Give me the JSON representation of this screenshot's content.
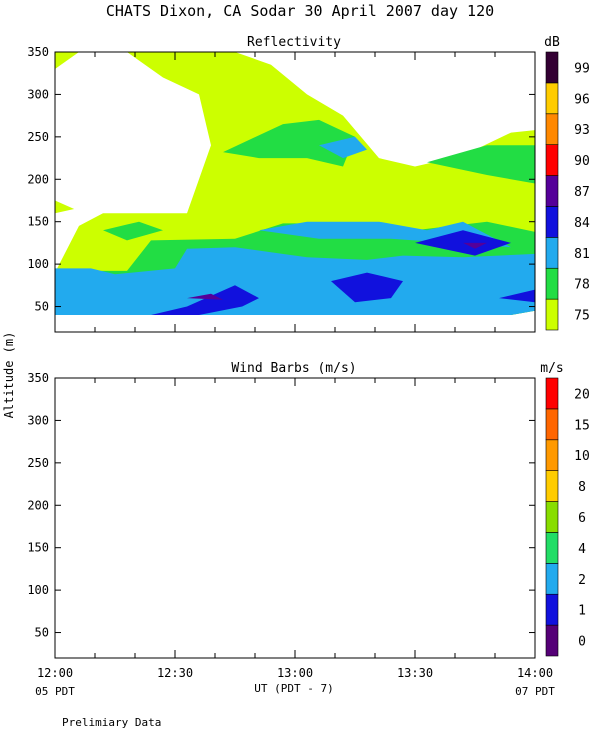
{
  "header": {
    "title": "CHATS Dixon, CA  Sodar  30 April 2007  day 120"
  },
  "footer": {
    "xlabel": "UT  (PDT - 7)",
    "left_tz": "05 PDT",
    "right_tz": "07 PDT",
    "note": "Prelimiary Data"
  },
  "y_label": "Altitude (m)",
  "x_ticks": [
    "12:00",
    "12:30",
    "13:00",
    "13:30",
    "14:00"
  ],
  "y_ticks": [
    "50",
    "100",
    "150",
    "200",
    "250",
    "300",
    "350"
  ],
  "colorbars": {
    "reflectivity": {
      "unit": "dB",
      "labels": [
        "75",
        "78",
        "81",
        "84",
        "87",
        "90",
        "93",
        "96",
        "99"
      ],
      "colors": [
        "#ccff00",
        "#22dd44",
        "#22aaee",
        "#1111dd",
        "#550099",
        "#ff0000",
        "#ff8800",
        "#ffcc00",
        "#330033"
      ]
    },
    "wind": {
      "unit": "m/s",
      "labels": [
        "0",
        "1",
        "2",
        "4",
        "6",
        "8",
        "10",
        "15",
        "20"
      ],
      "colors": [
        "#550077",
        "#1111dd",
        "#22aaee",
        "#22dd66",
        "#88dd00",
        "#ffcc00",
        "#ff9900",
        "#ff6600",
        "#ff0000"
      ]
    }
  },
  "chart_data": [
    {
      "type": "heatmap",
      "title": "Reflectivity",
      "xlabel": "UT  (PDT - 7)",
      "ylabel": "Altitude (m)",
      "x": [
        "12:00",
        "12:30",
        "13:00",
        "13:30",
        "14:00"
      ],
      "ylim": [
        20,
        350
      ],
      "colorbar_unit": "dB",
      "levels": [
        75,
        78,
        81,
        84,
        87,
        90,
        93,
        96,
        99
      ],
      "regions": [
        {
          "level": 75,
          "points": [
            [
              12.0,
              40
            ],
            [
              12.15,
              40
            ],
            [
              12.4,
              55
            ],
            [
              12.6,
              40
            ],
            [
              13.2,
              40
            ],
            [
              13.45,
              40
            ],
            [
              13.9,
              40
            ],
            [
              14.0,
              45
            ],
            [
              14.0,
              258
            ],
            [
              13.9,
              255
            ],
            [
              13.7,
              228
            ],
            [
              13.5,
              215
            ],
            [
              13.35,
              225
            ],
            [
              13.2,
              275
            ],
            [
              13.05,
              300
            ],
            [
              12.9,
              335
            ],
            [
              12.75,
              350
            ],
            [
              12.3,
              350
            ],
            [
              12.45,
              320
            ],
            [
              12.6,
              300
            ],
            [
              12.65,
              240
            ],
            [
              12.55,
              160
            ],
            [
              12.2,
              160
            ],
            [
              12.1,
              145
            ],
            [
              12.0,
              90
            ]
          ]
        },
        {
          "level": 75,
          "points": [
            [
              12.0,
              350
            ],
            [
              12.1,
              350
            ],
            [
              12.0,
              330
            ]
          ]
        },
        {
          "level": 75,
          "points": [
            [
              12.0,
              175
            ],
            [
              12.08,
              165
            ],
            [
              12.0,
              160
            ]
          ]
        },
        {
          "level": 78,
          "points": [
            [
              12.0,
              40
            ],
            [
              12.15,
              40
            ],
            [
              12.4,
              50
            ],
            [
              12.6,
              40
            ],
            [
              13.2,
              40
            ],
            [
              13.45,
              40
            ],
            [
              13.9,
              40
            ],
            [
              14.0,
              45
            ],
            [
              14.0,
              138
            ],
            [
              13.8,
              150
            ],
            [
              13.5,
              140
            ],
            [
              13.35,
              135
            ],
            [
              13.1,
              148
            ],
            [
              12.95,
              148
            ],
            [
              12.75,
              130
            ],
            [
              12.4,
              128
            ],
            [
              12.3,
              92
            ],
            [
              12.0,
              92
            ]
          ]
        },
        {
          "level": 78,
          "points": [
            [
              12.7,
              232
            ],
            [
              12.95,
              265
            ],
            [
              13.1,
              270
            ],
            [
              13.25,
              250
            ],
            [
              13.2,
              215
            ],
            [
              13.05,
              225
            ],
            [
              12.85,
              225
            ]
          ]
        },
        {
          "level": 78,
          "points": [
            [
              12.2,
              140
            ],
            [
              12.35,
              150
            ],
            [
              12.45,
              140
            ],
            [
              12.3,
              128
            ]
          ]
        },
        {
          "level": 78,
          "points": [
            [
              13.55,
              220
            ],
            [
              13.8,
              240
            ],
            [
              14.0,
              240
            ],
            [
              14.0,
              195
            ],
            [
              13.8,
              205
            ]
          ]
        },
        {
          "level": 81,
          "points": [
            [
              12.0,
              40
            ],
            [
              12.15,
              40
            ],
            [
              12.4,
              40
            ],
            [
              12.6,
              40
            ],
            [
              13.2,
              40
            ],
            [
              13.45,
              40
            ],
            [
              13.9,
              40
            ],
            [
              14.0,
              45
            ],
            [
              14.0,
              112
            ],
            [
              13.7,
              108
            ],
            [
              13.45,
              110
            ],
            [
              13.3,
              105
            ],
            [
              13.05,
              108
            ],
            [
              12.75,
              120
            ],
            [
              12.55,
              118
            ],
            [
              12.5,
              95
            ],
            [
              12.25,
              88
            ],
            [
              12.15,
              95
            ],
            [
              12.0,
              95
            ]
          ]
        },
        {
          "level": 81,
          "points": [
            [
              12.85,
              140
            ],
            [
              13.05,
              150
            ],
            [
              13.35,
              150
            ],
            [
              13.55,
              140
            ],
            [
              13.7,
              150
            ],
            [
              13.9,
              120
            ],
            [
              13.4,
              130
            ],
            [
              13.1,
              130
            ]
          ]
        },
        {
          "level": 81,
          "points": [
            [
              13.1,
              240
            ],
            [
              13.25,
              250
            ],
            [
              13.3,
              235
            ],
            [
              13.2,
              225
            ]
          ]
        },
        {
          "level": 84,
          "points": [
            [
              12.4,
              40
            ],
            [
              12.55,
              50
            ],
            [
              12.75,
              75
            ],
            [
              12.85,
              60
            ],
            [
              12.78,
              50
            ],
            [
              12.6,
              40
            ]
          ]
        },
        {
          "level": 84,
          "points": [
            [
              13.15,
              80
            ],
            [
              13.3,
              90
            ],
            [
              13.45,
              80
            ],
            [
              13.4,
              60
            ],
            [
              13.25,
              55
            ]
          ]
        },
        {
          "level": 84,
          "points": [
            [
              13.5,
              125
            ],
            [
              13.7,
              140
            ],
            [
              13.9,
              125
            ],
            [
              13.75,
              110
            ]
          ]
        },
        {
          "level": 84,
          "points": [
            [
              13.85,
              60
            ],
            [
              14.0,
              70
            ],
            [
              14.0,
              55
            ]
          ]
        },
        {
          "level": 87,
          "points": [
            [
              12.55,
              60
            ],
            [
              12.65,
              65
            ],
            [
              12.7,
              58
            ]
          ]
        },
        {
          "level": 87,
          "points": [
            [
              13.7,
              125
            ],
            [
              13.8,
              125
            ],
            [
              13.75,
              118
            ]
          ]
        }
      ]
    },
    {
      "type": "heatmap",
      "title": "Wind Barbs (m/s)",
      "xlabel": "UT  (PDT - 7)",
      "ylabel": "Altitude (m)",
      "x": [
        "12:00",
        "12:30",
        "13:00",
        "13:30",
        "14:00"
      ],
      "ylim": [
        20,
        350
      ],
      "colorbar_unit": "m/s",
      "levels": [
        0,
        1,
        2,
        4,
        6,
        8,
        10,
        15,
        20
      ],
      "regions": []
    }
  ]
}
